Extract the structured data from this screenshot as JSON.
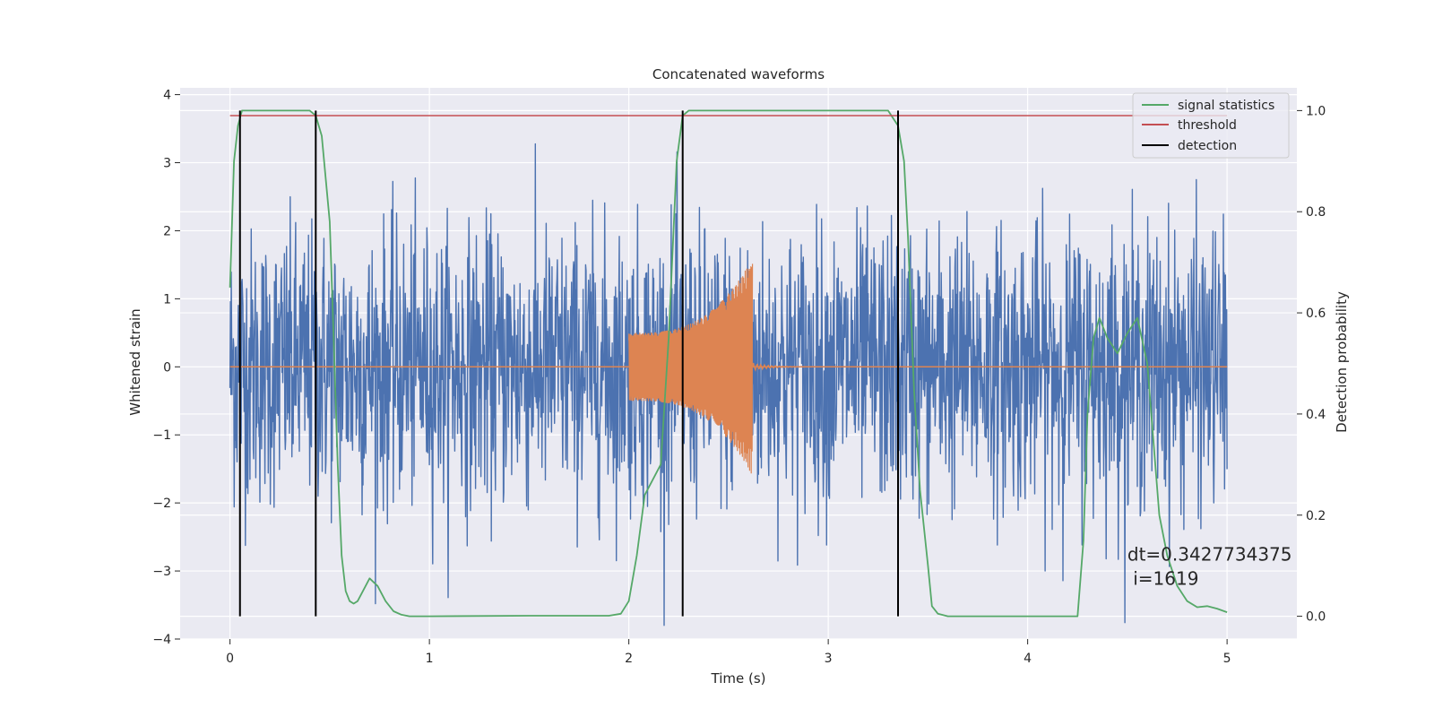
{
  "chart_data": {
    "type": "line",
    "title": "Concatenated waveforms",
    "xlabel": "Time (s)",
    "ylabel_left": "Whitened strain",
    "ylabel_right": "Detection probability",
    "xlim": [
      -0.25,
      5.35
    ],
    "ylim_left": [
      -4.0,
      4.1
    ],
    "ylim_right": [
      -0.045,
      1.045
    ],
    "x_ticks": [
      0,
      1,
      2,
      3,
      4,
      5
    ],
    "x_tick_labels": [
      "0",
      "1",
      "2",
      "3",
      "4",
      "5"
    ],
    "y_left_ticks": [
      -4,
      -3,
      -2,
      -1,
      0,
      1,
      2,
      3,
      4
    ],
    "y_left_tick_labels": [
      "−4",
      "−3",
      "−2",
      "−1",
      "0",
      "1",
      "2",
      "3",
      "4"
    ],
    "y_right_ticks": [
      0.0,
      0.2,
      0.4,
      0.6,
      0.8,
      1.0
    ],
    "y_right_tick_labels": [
      "0.0",
      "0.2",
      "0.4",
      "0.6",
      "0.8",
      "1.0"
    ],
    "grid": true,
    "legend_position": "top-right",
    "legend": [
      {
        "label": "signal statistics",
        "color": "#55a868"
      },
      {
        "label": "threshold",
        "color": "#c44e52"
      },
      {
        "label": "detection",
        "color": "#000000"
      }
    ],
    "series": [
      {
        "name": "",
        "axis": "left",
        "color": "#4c72b0",
        "kind": "noise",
        "x_range": [
          0,
          5
        ],
        "typical_amplitude": 1.0,
        "peak_amplitude": 3.8
      },
      {
        "name": "",
        "axis": "left",
        "color": "#dd8452",
        "kind": "chirp",
        "x_start": 2.0,
        "x_end": 2.62,
        "amplitude_start": 0.5,
        "amplitude_end": 1.6,
        "x_range": [
          0,
          5
        ]
      },
      {
        "name": "signal statistics",
        "axis": "right",
        "color": "#55a868",
        "x": [
          0.0,
          0.02,
          0.04,
          0.06,
          0.1,
          0.2,
          0.3,
          0.4,
          0.43,
          0.46,
          0.5,
          0.52,
          0.54,
          0.56,
          0.58,
          0.6,
          0.62,
          0.64,
          0.66,
          0.7,
          0.74,
          0.78,
          0.82,
          0.86,
          0.9,
          1.0,
          1.5,
          1.9,
          1.96,
          2.0,
          2.04,
          2.08,
          2.12,
          2.16,
          2.2,
          2.24,
          2.27,
          2.3,
          2.35,
          3.3,
          3.35,
          3.38,
          3.4,
          3.43,
          3.46,
          3.5,
          3.52,
          3.55,
          3.6,
          4.25,
          4.28,
          4.3,
          4.33,
          4.36,
          4.4,
          4.45,
          4.5,
          4.55,
          4.6,
          4.63,
          4.66,
          4.7,
          4.75,
          4.8,
          4.85,
          4.9,
          4.95,
          5.0
        ],
        "values": [
          0.65,
          0.9,
          0.97,
          1.0,
          1.0,
          1.0,
          1.0,
          1.0,
          0.99,
          0.95,
          0.78,
          0.55,
          0.3,
          0.12,
          0.05,
          0.03,
          0.025,
          0.03,
          0.045,
          0.075,
          0.06,
          0.03,
          0.01,
          0.003,
          0.0,
          0.0,
          0.001,
          0.001,
          0.005,
          0.03,
          0.12,
          0.24,
          0.27,
          0.3,
          0.55,
          0.9,
          0.99,
          1.0,
          1.0,
          1.0,
          0.97,
          0.9,
          0.75,
          0.45,
          0.25,
          0.1,
          0.02,
          0.005,
          0.0,
          0.0,
          0.15,
          0.4,
          0.55,
          0.59,
          0.55,
          0.52,
          0.56,
          0.59,
          0.5,
          0.35,
          0.2,
          0.12,
          0.06,
          0.03,
          0.018,
          0.02,
          0.015,
          0.008
        ]
      },
      {
        "name": "threshold",
        "axis": "right",
        "color": "#c44e52",
        "x": [
          0,
          5
        ],
        "values": [
          0.99,
          0.99
        ]
      },
      {
        "name": "detection",
        "axis": "right",
        "color": "#000000",
        "kind": "vertical_lines",
        "x": [
          0.05,
          0.43,
          2.27,
          3.35
        ],
        "y_range": [
          0.0,
          1.0
        ]
      }
    ],
    "annotations": [
      {
        "text": "dt=0.3427734375",
        "x": 4.5,
        "y_left": -2.85
      },
      {
        "text": " i=1619",
        "x": 4.5,
        "y_left": -3.2
      }
    ]
  }
}
